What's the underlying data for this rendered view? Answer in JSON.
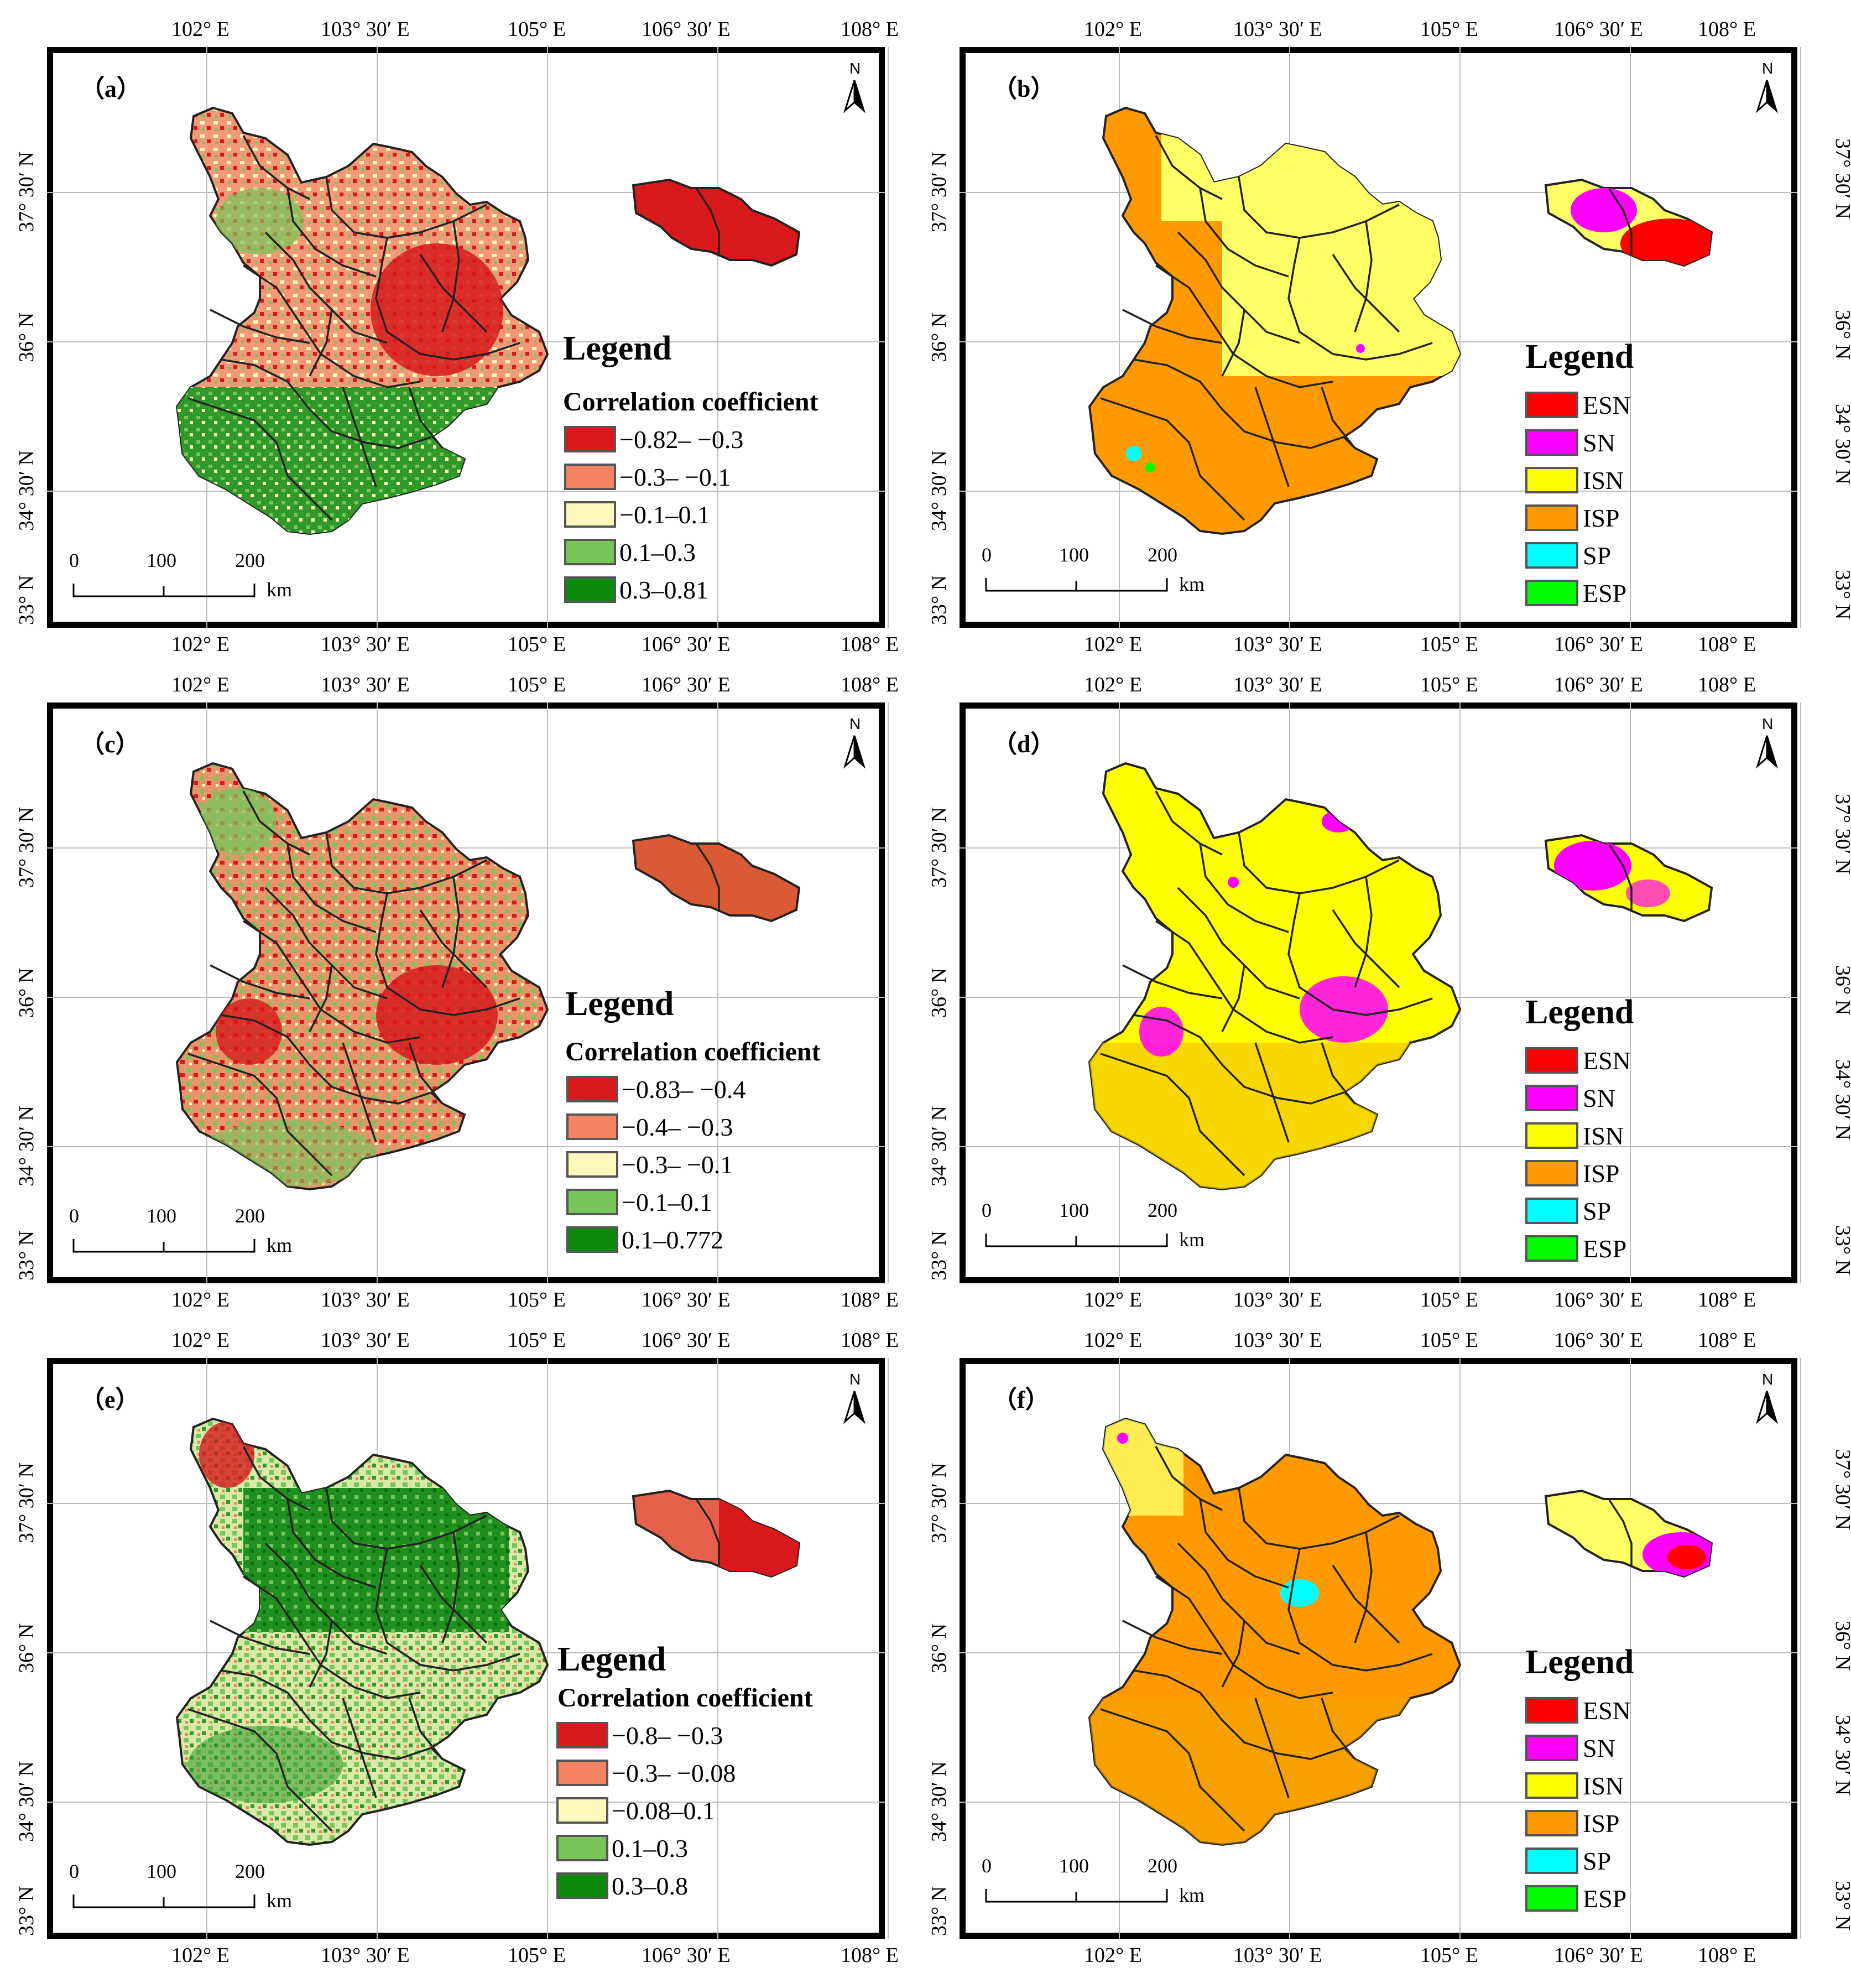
{
  "figure": {
    "lon_labels": [
      "102° E",
      "103° 30′ E",
      "105° E",
      "106° 30′ E",
      "108° E"
    ],
    "lat_labels": [
      "37° 30′ N",
      "36° N",
      "34° 30′ N",
      "33° N"
    ],
    "scale_bar": {
      "ticks": [
        "0",
        "100",
        "200"
      ],
      "unit": "km"
    },
    "north_label": "N",
    "legend_title": "Legend",
    "correlation_subtitle": "Correlation coefficient",
    "class_colors": {
      "corr": [
        "#d7191c",
        "#f4845f",
        "#fff7bc",
        "#78c65a",
        "#0b8a0b"
      ],
      "ESN": "#ff0000",
      "SN": "#ff00ff",
      "ISN": "#ffff00",
      "ISP": "#ff9900",
      "SP": "#00ffff",
      "ESP": "#00ff00"
    },
    "panels": [
      {
        "id": "a",
        "label": "（a）",
        "type": "correlation",
        "legend": [
          "−0.82– −0.3",
          "−0.3– −0.1",
          "−0.1–0.1",
          "0.1–0.3",
          "0.3–0.81"
        ]
      },
      {
        "id": "b",
        "label": "（b）",
        "type": "significance",
        "legend": [
          "ESN",
          "SN",
          "ISN",
          "ISP",
          "SP",
          "ESP"
        ]
      },
      {
        "id": "c",
        "label": "（c）",
        "type": "correlation",
        "legend": [
          "−0.83– −0.4",
          "−0.4– −0.3",
          "−0.3– −0.1",
          "−0.1–0.1",
          "0.1–0.772"
        ]
      },
      {
        "id": "d",
        "label": "（d）",
        "type": "significance",
        "legend": [
          "ESN",
          "SN",
          "ISN",
          "ISP",
          "SP",
          "ESP"
        ]
      },
      {
        "id": "e",
        "label": "（e）",
        "type": "correlation",
        "legend": [
          "−0.8– −0.3",
          "−0.3– −0.08",
          "−0.08–0.1",
          "0.1–0.3",
          "0.3–0.8"
        ]
      },
      {
        "id": "f",
        "label": "（f）",
        "type": "significance",
        "legend": [
          "ESN",
          "SN",
          "ISN",
          "ISP",
          "SP",
          "ESP"
        ]
      }
    ]
  }
}
